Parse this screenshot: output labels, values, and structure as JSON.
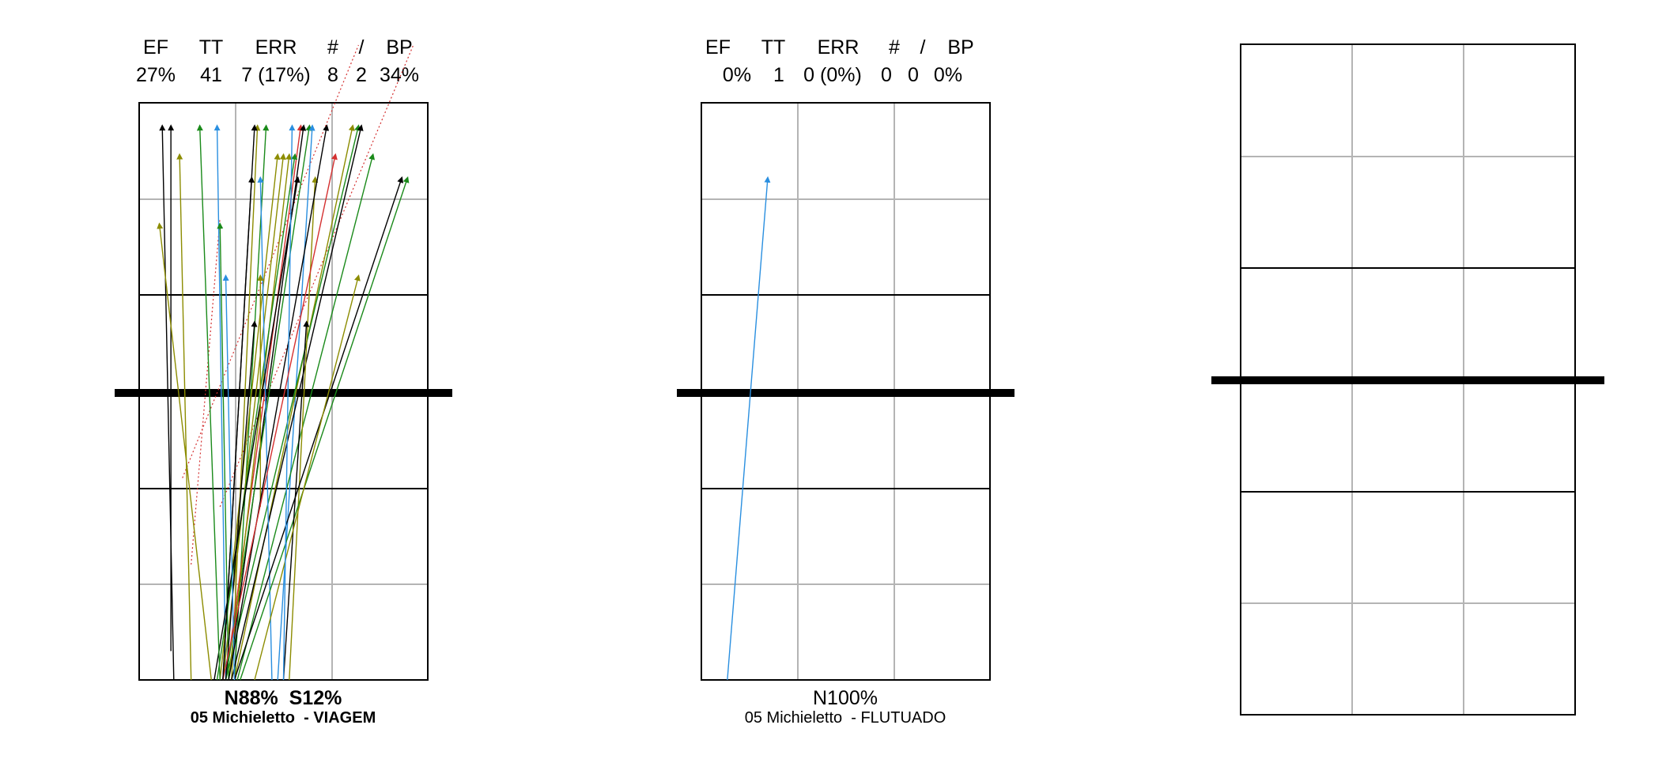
{
  "colors": {
    "black": "#000000",
    "blue": "#2a8fe0",
    "olive": "#8c8c00",
    "green": "#1a8a1a",
    "red": "#d43030",
    "grid": "#b4b4b4"
  },
  "chart_data": [
    {
      "type": "court-diagram",
      "stats": {
        "headers": [
          "EF",
          "TT",
          "ERR",
          "#",
          "/",
          "BP"
        ],
        "values": [
          "27%",
          "41",
          "7 (17%)",
          "8",
          "2",
          "34%"
        ]
      },
      "zone_split": "N88%  S12%",
      "player_label": "05 Michieletto  - VIAGEM",
      "trajectories": [
        {
          "from": [
            0.12,
            1.0
          ],
          "to": [
            0.08,
            0.04
          ],
          "color": "black"
        },
        {
          "from": [
            0.11,
            0.95
          ],
          "to": [
            0.11,
            0.04
          ],
          "color": "black"
        },
        {
          "from": [
            0.18,
            1.0
          ],
          "to": [
            0.14,
            0.09
          ],
          "color": "olive"
        },
        {
          "from": [
            0.3,
            1.0
          ],
          "to": [
            0.27,
            0.04
          ],
          "color": "blue"
        },
        {
          "from": [
            0.32,
            1.0
          ],
          "to": [
            0.41,
            0.04
          ],
          "color": "olive"
        },
        {
          "from": [
            0.33,
            1.0
          ],
          "to": [
            0.44,
            0.04
          ],
          "color": "green"
        },
        {
          "from": [
            0.3,
            1.0
          ],
          "to": [
            0.56,
            0.04
          ],
          "color": "red"
        },
        {
          "from": [
            0.31,
            1.0
          ],
          "to": [
            0.57,
            0.04
          ],
          "color": "black"
        },
        {
          "from": [
            0.3,
            1.0
          ],
          "to": [
            0.59,
            0.04
          ],
          "color": "green"
        },
        {
          "from": [
            0.48,
            1.0
          ],
          "to": [
            0.6,
            0.04
          ],
          "color": "blue"
        },
        {
          "from": [
            0.33,
            1.0
          ],
          "to": [
            0.74,
            0.04
          ],
          "color": "olive"
        },
        {
          "from": [
            0.3,
            1.0
          ],
          "to": [
            0.76,
            0.04
          ],
          "color": "green"
        },
        {
          "from": [
            0.32,
            1.0
          ],
          "to": [
            0.77,
            0.04
          ],
          "color": "black"
        },
        {
          "from": [
            0.28,
            1.0
          ],
          "to": [
            0.48,
            0.09
          ],
          "color": "olive"
        },
        {
          "from": [
            0.29,
            1.0
          ],
          "to": [
            0.5,
            0.09
          ],
          "color": "olive"
        },
        {
          "from": [
            0.31,
            1.0
          ],
          "to": [
            0.52,
            0.09
          ],
          "color": "olive"
        },
        {
          "from": [
            0.27,
            1.0
          ],
          "to": [
            0.54,
            0.09
          ],
          "color": "green"
        },
        {
          "from": [
            0.34,
            1.0
          ],
          "to": [
            0.81,
            0.09
          ],
          "color": "green"
        },
        {
          "from": [
            0.29,
            1.0
          ],
          "to": [
            0.39,
            0.13
          ],
          "color": "black"
        },
        {
          "from": [
            0.46,
            1.0
          ],
          "to": [
            0.42,
            0.13
          ],
          "color": "blue"
        },
        {
          "from": [
            0.26,
            1.0
          ],
          "to": [
            0.55,
            0.13
          ],
          "color": "black"
        },
        {
          "from": [
            0.52,
            1.0
          ],
          "to": [
            0.61,
            0.13
          ],
          "color": "olive"
        },
        {
          "from": [
            0.33,
            1.0
          ],
          "to": [
            0.91,
            0.13
          ],
          "color": "black"
        },
        {
          "from": [
            0.35,
            1.0
          ],
          "to": [
            0.93,
            0.13
          ],
          "color": "green"
        },
        {
          "from": [
            0.25,
            1.0
          ],
          "to": [
            0.07,
            0.21
          ],
          "color": "olive"
        },
        {
          "from": [
            0.31,
            1.0
          ],
          "to": [
            0.28,
            0.21
          ],
          "color": "green"
        },
        {
          "from": [
            0.42,
            0.7
          ],
          "to": [
            0.42,
            0.3
          ],
          "color": "olive"
        },
        {
          "from": [
            0.3,
            1.0
          ],
          "to": [
            0.4,
            0.38
          ],
          "color": "black"
        },
        {
          "from": [
            0.5,
            1.0
          ],
          "to": [
            0.58,
            0.38
          ],
          "color": "black"
        },
        {
          "from": [
            0.4,
            1.0
          ],
          "to": [
            0.76,
            0.3
          ],
          "color": "olive"
        },
        {
          "from": [
            0.33,
            1.0
          ],
          "to": [
            0.3,
            0.3
          ],
          "color": "blue"
        },
        {
          "from": [
            0.31,
            1.0
          ],
          "to": [
            0.65,
            0.04
          ],
          "color": "black"
        },
        {
          "from": [
            0.28,
            1.0
          ],
          "to": [
            0.21,
            0.04
          ],
          "color": "green"
        },
        {
          "from": [
            0.5,
            1.0
          ],
          "to": [
            0.53,
            0.04
          ],
          "color": "blue"
        },
        {
          "from": [
            0.29,
            1.0
          ],
          "to": [
            0.68,
            0.09
          ],
          "color": "red"
        },
        {
          "from": [
            0.29,
            1.0
          ],
          "to": [
            0.4,
            0.04
          ],
          "color": "black"
        }
      ],
      "out_trajectories": [
        {
          "from": [
            0.15,
            0.65
          ],
          "to": [
            0.76,
            -0.1
          ],
          "color": "red"
        },
        {
          "from": [
            0.28,
            0.7
          ],
          "to": [
            0.95,
            -0.1
          ],
          "color": "red"
        },
        {
          "from": [
            0.18,
            0.8
          ],
          "to": [
            0.28,
            0.2
          ],
          "color": "red"
        }
      ]
    },
    {
      "type": "court-diagram",
      "stats": {
        "headers": [
          "EF",
          "TT",
          "ERR",
          "#",
          "/",
          "BP"
        ],
        "values": [
          "0%",
          "1",
          "0 (0%)",
          "0",
          "0",
          "0%"
        ]
      },
      "zone_split": "N100%",
      "player_label": "05 Michieletto  - FLUTUADO",
      "trajectories": [
        {
          "from": [
            0.09,
            1.0
          ],
          "to": [
            0.23,
            0.13
          ],
          "color": "blue"
        }
      ],
      "out_trajectories": []
    },
    {
      "type": "court-diagram",
      "stats": null,
      "zone_split": "",
      "player_label": "",
      "trajectories": [],
      "out_trajectories": []
    }
  ]
}
